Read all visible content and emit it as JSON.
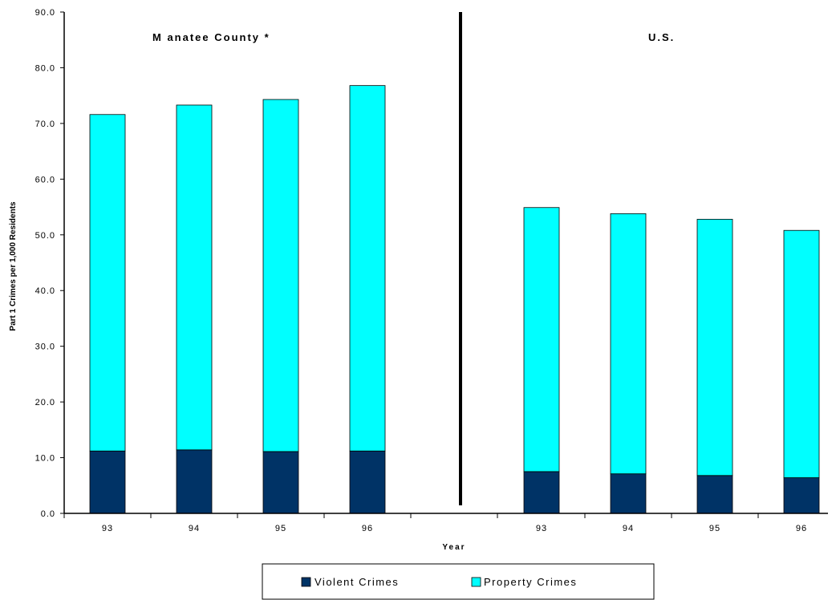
{
  "chart_data": {
    "type": "bar",
    "stacked": true,
    "ylabel": "Part 1 Crimes per 1,000 Residents",
    "xlabel": "Year",
    "ylim": [
      0,
      90
    ],
    "yticks": [
      "0.0",
      "10.0",
      "20.0",
      "30.0",
      "40.0",
      "50.0",
      "60.0",
      "70.0",
      "80.0",
      "90.0"
    ],
    "grid": false,
    "legend_position": "bottom-center",
    "panels": [
      {
        "title": "M anatee County *",
        "categories": [
          "93",
          "94",
          "95",
          "96"
        ],
        "series": [
          {
            "name": "Violent Crimes",
            "color": "#003366",
            "values": [
              11.2,
              11.4,
              11.1,
              11.2
            ]
          },
          {
            "name": "Property Crimes",
            "color": "#00FFFF",
            "values": [
              60.4,
              61.9,
              63.2,
              65.6
            ]
          }
        ]
      },
      {
        "title": "U.S.",
        "categories": [
          "93",
          "94",
          "95",
          "96"
        ],
        "series": [
          {
            "name": "Violent Crimes",
            "color": "#003366",
            "values": [
              7.5,
              7.1,
              6.8,
              6.4
            ]
          },
          {
            "name": "Property Crimes",
            "color": "#00FFFF",
            "values": [
              47.4,
              46.7,
              46.0,
              44.4
            ]
          }
        ]
      }
    ],
    "legend": [
      {
        "label": "Violent Crimes",
        "color": "#003366"
      },
      {
        "label": "Property Crimes",
        "color": "#00FFFF"
      }
    ]
  }
}
